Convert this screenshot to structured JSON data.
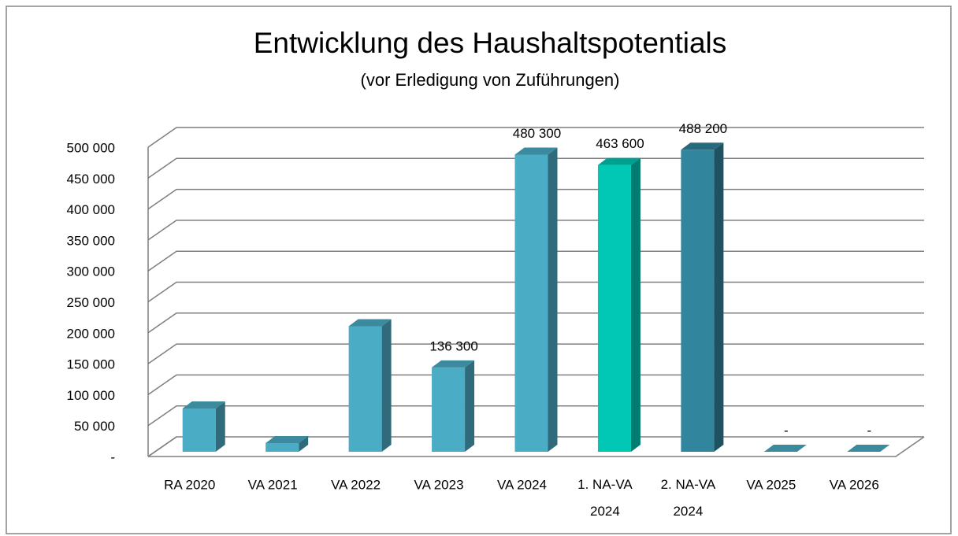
{
  "chart_data": {
    "type": "bar3d",
    "title": "Entwicklung des Haushaltspotentials",
    "subtitle": "(vor Erledigung von Zuführungen)",
    "categories": [
      "RA 2020",
      "VA 2021",
      "VA 2022",
      "VA 2023",
      "VA 2024",
      "1. NA-VA 2024",
      "2. NA-VA 2024",
      "VA 2025",
      "VA 2026"
    ],
    "values": [
      70000,
      14000,
      203000,
      136300,
      480300,
      463600,
      488200,
      0,
      0
    ],
    "value_labels": [
      null,
      null,
      null,
      "136 300",
      "480 300",
      "463 600",
      "488 200",
      "-",
      "-"
    ],
    "colors": [
      "#4bacc6",
      "#4bacc6",
      "#4bacc6",
      "#4bacc6",
      "#4bacc6",
      "#00c8b4",
      "#31859c",
      "#4bacc6",
      "#4bacc6"
    ],
    "ylim": [
      0,
      500000
    ],
    "yticks": [
      {
        "value": 0,
        "label": "-"
      },
      {
        "value": 50000,
        "label": "50 000"
      },
      {
        "value": 100000,
        "label": "100 000"
      },
      {
        "value": 150000,
        "label": "150 000"
      },
      {
        "value": 200000,
        "label": "200 000"
      },
      {
        "value": 250000,
        "label": "250 000"
      },
      {
        "value": 300000,
        "label": "300 000"
      },
      {
        "value": 350000,
        "label": "350 000"
      },
      {
        "value": 400000,
        "label": "400 000"
      },
      {
        "value": 450000,
        "label": "450 000"
      },
      {
        "value": 500000,
        "label": "500 000"
      }
    ],
    "grid": true
  }
}
